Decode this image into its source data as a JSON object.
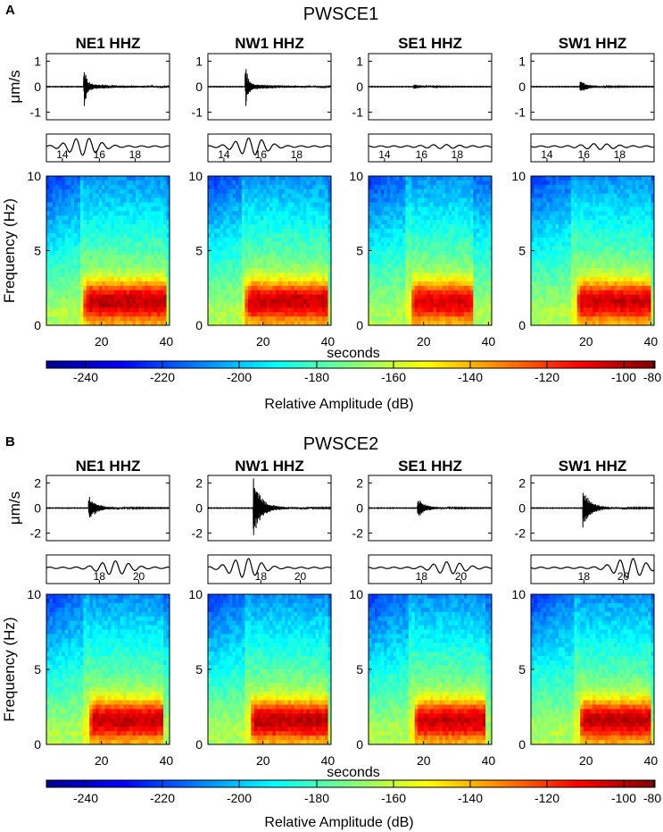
{
  "chart_data": [
    {
      "type": "figure-panel",
      "panel_label": "A",
      "title": "PWSCE1",
      "stations": [
        "NE1 HHZ",
        "NW1 HHZ",
        "SE1 HHZ",
        "SW1 HHZ"
      ],
      "waveform": {
        "ylabel": "μm/s",
        "ylim": [
          -1.3,
          1.3
        ],
        "yticks": [
          "1",
          "0",
          "-1"
        ],
        "peak_amplitude": [
          1.0,
          1.0,
          0.1,
          0.25
        ],
        "onset_time_s": [
          14.5,
          14.5,
          17,
          18
        ]
      },
      "zoom": {
        "ticks": [
          [
            "14",
            "16",
            "18"
          ],
          [
            "14",
            "16",
            "18"
          ],
          [
            "14",
            "16",
            "18"
          ],
          [
            "14",
            "16",
            "18"
          ]
        ]
      },
      "spectrogram": {
        "type": "heatmap",
        "ylabel": "Frequency (Hz)",
        "xlabel": "seconds",
        "xlim": [
          3,
          41
        ],
        "ylim": [
          0,
          10
        ],
        "yticks": [
          "10",
          "5",
          "0"
        ],
        "xticks": [
          "20",
          "40"
        ]
      },
      "colorbar": {
        "label": "Relative Amplitude  (dB)",
        "range": [
          -253,
          -80
        ],
        "ticks": [
          "-240",
          "-220",
          "-200",
          "-180",
          "-160",
          "-140",
          "-120",
          "-100",
          "-80"
        ]
      }
    },
    {
      "type": "figure-panel",
      "panel_label": "B",
      "title": "PWSCE2",
      "stations": [
        "NE1 HHZ",
        "NW1 HHZ",
        "SE1 HHZ",
        "SW1 HHZ"
      ],
      "waveform": {
        "ylabel": "μm/s",
        "ylim": [
          -2.6,
          2.6
        ],
        "yticks": [
          "2",
          "0",
          "-2"
        ],
        "peak_amplitude": [
          1.0,
          2.4,
          0.8,
          1.5
        ],
        "onset_time_s": [
          16,
          17,
          18,
          19
        ]
      },
      "zoom": {
        "ticks": [
          [
            "18",
            "20"
          ],
          [
            "18",
            "20"
          ],
          [
            "18",
            "20"
          ],
          [
            "18",
            "20"
          ]
        ]
      },
      "spectrogram": {
        "type": "heatmap",
        "ylabel": "Frequency (Hz)",
        "xlabel": "seconds",
        "xlim": [
          3,
          41
        ],
        "ylim": [
          0,
          10
        ],
        "yticks": [
          "10",
          "5",
          "0"
        ],
        "xticks": [
          "20",
          "40"
        ]
      },
      "colorbar": {
        "label": "Relative Amplitude  (dB)",
        "range": [
          -253,
          -80
        ],
        "ticks": [
          "-240",
          "-220",
          "-200",
          "-180",
          "-160",
          "-140",
          "-120",
          "-100",
          "-80"
        ]
      }
    }
  ]
}
